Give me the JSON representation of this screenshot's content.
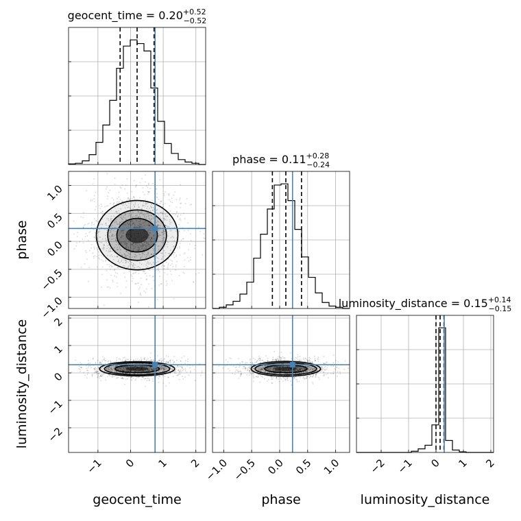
{
  "chart_data": {
    "type": "corner",
    "parameters": [
      "geocent_time",
      "phase",
      "luminosity_distance"
    ],
    "titles": {
      "geocent_time": {
        "name": "geocent_time",
        "median": "0.20",
        "plus": "+0.52",
        "minus": "−0.52"
      },
      "phase": {
        "name": "phase",
        "median": "0.11",
        "plus": "+0.28",
        "minus": "−0.24"
      },
      "luminosity_distance": {
        "name": "luminosity_distance",
        "median": "0.15",
        "plus": "+0.14",
        "minus": "−0.15"
      }
    },
    "truths": {
      "geocent_time": 0.75,
      "phase": 0.23,
      "luminosity_distance": 0.3
    },
    "quantiles": {
      "geocent_time": [
        -0.32,
        0.2,
        0.72
      ],
      "phase": [
        -0.13,
        0.11,
        0.39
      ],
      "luminosity_distance": [
        0.0,
        0.15,
        0.29
      ]
    },
    "ranges": {
      "geocent_time": [
        -1.9,
        2.3
      ],
      "phase": [
        -1.2,
        1.25
      ],
      "luminosity_distance": [
        -2.9,
        2.1
      ]
    },
    "ticks": {
      "geocent_time": [
        -1,
        0,
        1,
        2
      ],
      "phase": [
        -1.0,
        -0.5,
        0.0,
        0.5,
        1.0
      ],
      "luminosity_distance": [
        -2,
        -1,
        0,
        1,
        2
      ]
    },
    "tick_labels": {
      "geocent_time": [
        "−1",
        "0",
        "1",
        "2"
      ],
      "phase": [
        "−1.0",
        "−0.5",
        "0.0",
        "0.5",
        "1.0"
      ],
      "luminosity_distance": [
        "−2",
        "−1",
        "0",
        "1",
        "2"
      ]
    },
    "histograms": {
      "geocent_time": {
        "edges": [
          -1.9,
          -1.69,
          -1.48,
          -1.27,
          -1.06,
          -0.85,
          -0.64,
          -0.43,
          -0.22,
          -0.01,
          0.2,
          0.41,
          0.62,
          0.83,
          1.04,
          1.25,
          1.46,
          1.67,
          1.88,
          2.09,
          2.3
        ],
        "counts": [
          0.5,
          1,
          3,
          8,
          18,
          32,
          52,
          78,
          96,
          101,
          98,
          92,
          62,
          35,
          17,
          9,
          4,
          2,
          1,
          0
        ]
      },
      "phase": {
        "edges": [
          -1.2,
          -1.0775,
          -0.955,
          -0.8325,
          -0.71,
          -0.5875,
          -0.465,
          -0.3425,
          -0.22,
          -0.0975,
          0.025,
          0.1475,
          0.27,
          0.3925,
          0.515,
          0.6375,
          0.76,
          0.8825,
          1.005,
          1.1275,
          1.25
        ],
        "counts": [
          0,
          1,
          3,
          6,
          12,
          22,
          42,
          62,
          83,
          103,
          104,
          90,
          66,
          43,
          26,
          13,
          5,
          2,
          1,
          0
        ]
      },
      "luminosity_distance": {
        "edges": [
          -2.9,
          -2.65,
          -2.4,
          -2.15,
          -1.9,
          -1.65,
          -1.4,
          -1.15,
          -0.9,
          -0.65,
          -0.4,
          -0.15,
          0.1,
          0.35,
          0.6,
          0.85,
          1.1,
          1.35,
          1.6,
          1.85,
          2.1
        ],
        "counts": [
          0,
          0,
          0,
          0,
          0,
          0,
          0,
          0,
          1,
          3,
          6,
          23,
          104,
          10,
          2,
          0.5,
          0,
          0,
          0,
          0
        ]
      }
    },
    "pairs": [
      {
        "x": "geocent_time",
        "y": "phase",
        "center": [
          0.2,
          0.11
        ],
        "contours": [
          {
            "rx": 0.35,
            "ry": 0.14
          },
          {
            "rx": 0.62,
            "ry": 0.3
          },
          {
            "rx": 0.9,
            "ry": 0.45
          },
          {
            "rx": 1.25,
            "ry": 0.62
          }
        ]
      },
      {
        "x": "geocent_time",
        "y": "luminosity_distance",
        "center": [
          0.2,
          0.15
        ],
        "contours": [
          {
            "rx": 0.35,
            "ry": 0.07
          },
          {
            "rx": 0.68,
            "ry": 0.14
          },
          {
            "rx": 1.0,
            "ry": 0.22
          },
          {
            "rx": 1.15,
            "ry": 0.26
          }
        ]
      },
      {
        "x": "phase",
        "y": "luminosity_distance",
        "center": [
          0.11,
          0.15
        ],
        "contours": [
          {
            "rx": 0.2,
            "ry": 0.07
          },
          {
            "rx": 0.38,
            "ry": 0.14
          },
          {
            "rx": 0.55,
            "ry": 0.22
          },
          {
            "rx": 0.62,
            "ry": 0.27
          }
        ]
      }
    ],
    "grid": true,
    "colors": {
      "truth": "#4682b4",
      "hist": "#000000",
      "density": "#000000",
      "grid": "#b0b0b0"
    }
  }
}
